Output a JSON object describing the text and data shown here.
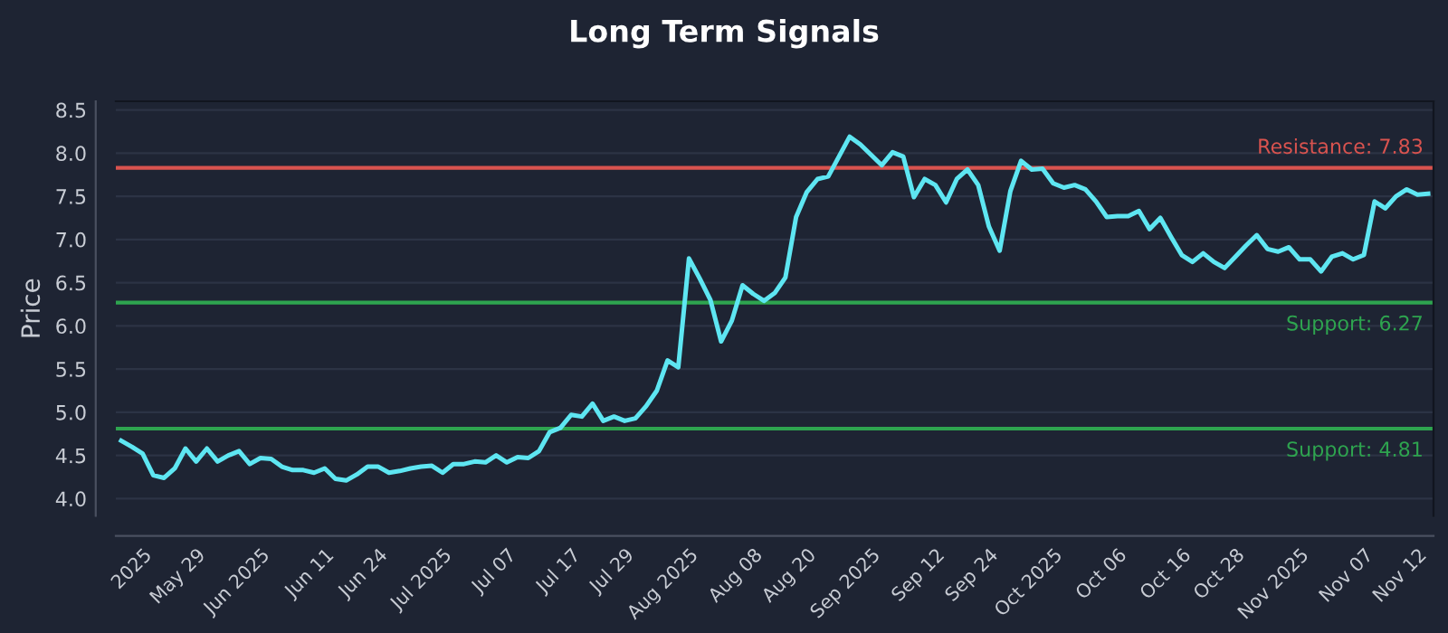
{
  "chart_data": {
    "type": "line",
    "title": "Long Term Signals",
    "ylabel": "Price",
    "categories": [
      null,
      null,
      "2025",
      null,
      null,
      null,
      null,
      "May 29",
      null,
      null,
      null,
      null,
      null,
      "Jun 2025",
      null,
      null,
      null,
      null,
      null,
      "Jun 11",
      null,
      null,
      null,
      null,
      "Jun 24",
      null,
      null,
      null,
      null,
      null,
      "Jul 2025",
      null,
      null,
      null,
      null,
      null,
      "Jul 07",
      null,
      null,
      null,
      null,
      null,
      "Jul 17",
      null,
      null,
      null,
      null,
      "Jul 29",
      null,
      null,
      null,
      null,
      null,
      "Aug 2025",
      null,
      null,
      null,
      null,
      null,
      "Aug 08",
      null,
      null,
      null,
      null,
      "Aug 20",
      null,
      null,
      null,
      null,
      null,
      "Sep 2025",
      null,
      null,
      null,
      null,
      null,
      "Sep 12",
      null,
      null,
      null,
      null,
      "Sep 24",
      null,
      null,
      null,
      null,
      null,
      "Oct 2025",
      null,
      null,
      null,
      null,
      null,
      "Oct 06",
      null,
      null,
      null,
      null,
      null,
      "Oct 16",
      null,
      null,
      null,
      null,
      "Oct 28",
      null,
      null,
      null,
      null,
      null,
      "Nov 2025",
      null,
      null,
      null,
      null,
      null,
      "Nov 07",
      null,
      null,
      null,
      null,
      "Nov 12",
      null
    ],
    "series": [
      {
        "color": "#5ee6f2",
        "values": [
          4.67,
          4.6,
          4.52,
          4.27,
          4.24,
          4.35,
          4.58,
          4.43,
          4.58,
          4.43,
          4.5,
          4.55,
          4.4,
          4.47,
          4.46,
          4.37,
          4.33,
          4.33,
          4.3,
          4.35,
          4.23,
          4.21,
          4.28,
          4.37,
          4.37,
          4.3,
          4.32,
          4.35,
          4.37,
          4.38,
          4.3,
          4.4,
          4.4,
          4.43,
          4.42,
          4.5,
          4.42,
          4.48,
          4.47,
          4.55,
          4.77,
          4.82,
          4.97,
          4.95,
          5.1,
          4.9,
          4.95,
          4.9,
          4.93,
          5.07,
          5.25,
          5.6,
          5.52,
          6.78,
          6.55,
          6.3,
          5.82,
          6.06,
          6.47,
          6.37,
          6.29,
          6.38,
          6.56,
          7.26,
          7.55,
          7.7,
          7.73,
          7.96,
          8.19,
          8.1,
          7.98,
          7.86,
          8.01,
          7.96,
          7.49,
          7.7,
          7.63,
          7.43,
          7.7,
          7.81,
          7.63,
          7.15,
          6.87,
          7.56,
          7.91,
          7.81,
          7.82,
          7.65,
          7.6,
          7.63,
          7.58,
          7.44,
          7.26,
          7.27,
          7.27,
          7.33,
          7.12,
          7.25,
          7.03,
          6.82,
          6.74,
          6.84,
          6.74,
          6.67,
          6.8,
          6.93,
          7.05,
          6.89,
          6.86,
          6.91,
          6.77,
          6.77,
          6.63,
          6.8,
          6.84,
          6.77,
          6.82,
          7.44,
          7.36,
          7.5,
          7.58,
          7.52,
          7.53
        ]
      }
    ],
    "ylim": [
      3.8,
      8.6
    ],
    "yticks": [
      {
        "value": 4,
        "label": "4.0"
      },
      4.5,
      {
        "value": 5,
        "label": "5.0"
      },
      5.5,
      {
        "value": 6,
        "label": "6.0"
      },
      6.5,
      {
        "value": 7,
        "label": "7.0"
      },
      7.5,
      {
        "value": 8,
        "label": "8.0"
      },
      8.5
    ],
    "grid": "y",
    "marker": "none",
    "line_style": "solid",
    "ref_lines": [
      {
        "axis": "y",
        "value": 7.83,
        "label": "Resistance: 7.83",
        "color": "#d9534f"
      },
      {
        "axis": "y",
        "value": 6.27,
        "label": "Support: 6.27",
        "color": "#2ea44f"
      },
      {
        "axis": "y",
        "value": 4.81,
        "label": "Support: 4.81",
        "color": "#2ea44f"
      }
    ]
  }
}
